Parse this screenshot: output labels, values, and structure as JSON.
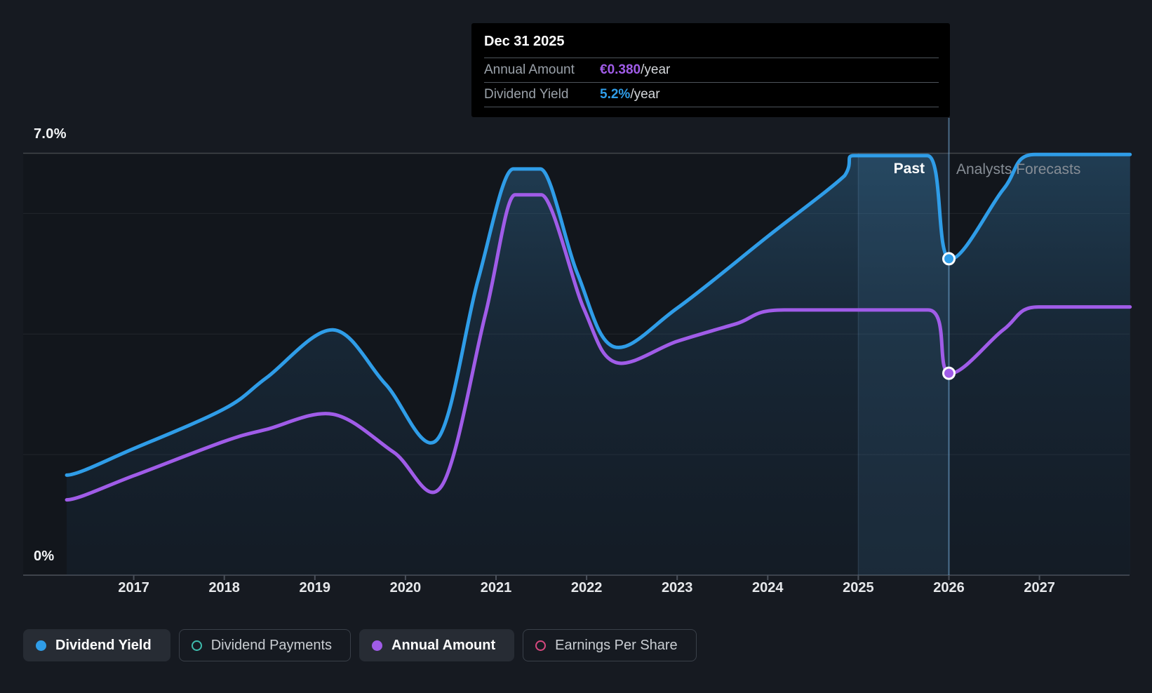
{
  "page": {
    "background": "#161A21"
  },
  "tooltip": {
    "date": "Dec 31 2025",
    "rows": [
      {
        "label": "Annual Amount",
        "value": "€0.380",
        "suffix": "/year",
        "value_color": "#A05CE8"
      },
      {
        "label": "Dividend Yield",
        "value": "5.2%",
        "suffix": "/year",
        "value_color": "#2F9DE8"
      }
    ]
  },
  "axis": {
    "y_max_label": "7.0%",
    "y_zero_label": "0%",
    "years": [
      2017,
      2018,
      2019,
      2020,
      2021,
      2022,
      2023,
      2024,
      2025,
      2026,
      2027
    ]
  },
  "annotations": {
    "past": "Past",
    "forecast": "Analysts Forecasts"
  },
  "legend": {
    "items": [
      {
        "label": "Dividend Yield",
        "marker": "filled",
        "color": "#2F9DE8",
        "selected": true
      },
      {
        "label": "Dividend Payments",
        "marker": "open",
        "color": "#3EBCAD",
        "selected": false
      },
      {
        "label": "Annual Amount",
        "marker": "filled",
        "color": "#A05CE8",
        "selected": true
      },
      {
        "label": "Earnings Per Share",
        "marker": "open",
        "color": "#D6487F",
        "selected": false
      }
    ]
  },
  "chart_data": {
    "type": "area",
    "title": "Dividend yield history and analysts forecast",
    "y_unit": "%",
    "ylim": [
      0,
      7
    ],
    "gridline_values": [
      7,
      6,
      4,
      2,
      0
    ],
    "labeled_gridlines": {
      "7": "7.0%",
      "0": "0%"
    },
    "x_range": [
      2016.26,
      2028
    ],
    "divider_x": 2026,
    "divider_date": "Dec 31 2025",
    "highlight_band": {
      "from": 2025,
      "to": 2026
    },
    "grid": "horizontal-only",
    "legend_position": "bottom",
    "series": [
      {
        "name": "Dividend Yield",
        "color": "#2F9DE8",
        "unit": "%",
        "points": [
          [
            2016.26,
            1.66
          ],
          [
            2017,
            2.1
          ],
          [
            2018,
            2.76
          ],
          [
            2018.47,
            3.28
          ],
          [
            2019.2,
            4.07
          ],
          [
            2019.78,
            3.17
          ],
          [
            2020.35,
            2.25
          ],
          [
            2020.8,
            4.89
          ],
          [
            2021.19,
            6.74
          ],
          [
            2021.49,
            6.74
          ],
          [
            2021.9,
            5.0
          ],
          [
            2022.3,
            3.79
          ],
          [
            2023,
            4.43
          ],
          [
            2024,
            5.62
          ],
          [
            2024.85,
            6.63
          ],
          [
            2024.95,
            6.96
          ],
          [
            2025.76,
            6.96
          ],
          [
            2026.0,
            5.25
          ],
          [
            2026.6,
            6.4
          ],
          [
            2026.95,
            6.98
          ],
          [
            2028.0,
            6.98
          ]
        ]
      },
      {
        "name": "Annual Amount",
        "color": "#A05CE8",
        "unit": "yield-axis equivalent (euro scale hidden)",
        "points": [
          [
            2016.26,
            1.25
          ],
          [
            2017,
            1.65
          ],
          [
            2018,
            2.22
          ],
          [
            2018.47,
            2.42
          ],
          [
            2019.2,
            2.67
          ],
          [
            2019.87,
            2.04
          ],
          [
            2020.4,
            1.48
          ],
          [
            2020.88,
            4.31
          ],
          [
            2021.21,
            6.31
          ],
          [
            2021.5,
            6.31
          ],
          [
            2021.97,
            4.42
          ],
          [
            2022.32,
            3.53
          ],
          [
            2023,
            3.88
          ],
          [
            2023.65,
            4.17
          ],
          [
            2024.18,
            4.4
          ],
          [
            2025.77,
            4.4
          ],
          [
            2026.0,
            3.35
          ],
          [
            2026.6,
            4.07
          ],
          [
            2026.99,
            4.45
          ],
          [
            2028.0,
            4.45
          ]
        ]
      }
    ],
    "markers": [
      {
        "series": "Dividend Yield",
        "x": 2026,
        "y": 5.25,
        "label": "5.2%/year"
      },
      {
        "series": "Annual Amount",
        "x": 2026,
        "y": 3.35,
        "label": "€0.380/year"
      }
    ]
  }
}
